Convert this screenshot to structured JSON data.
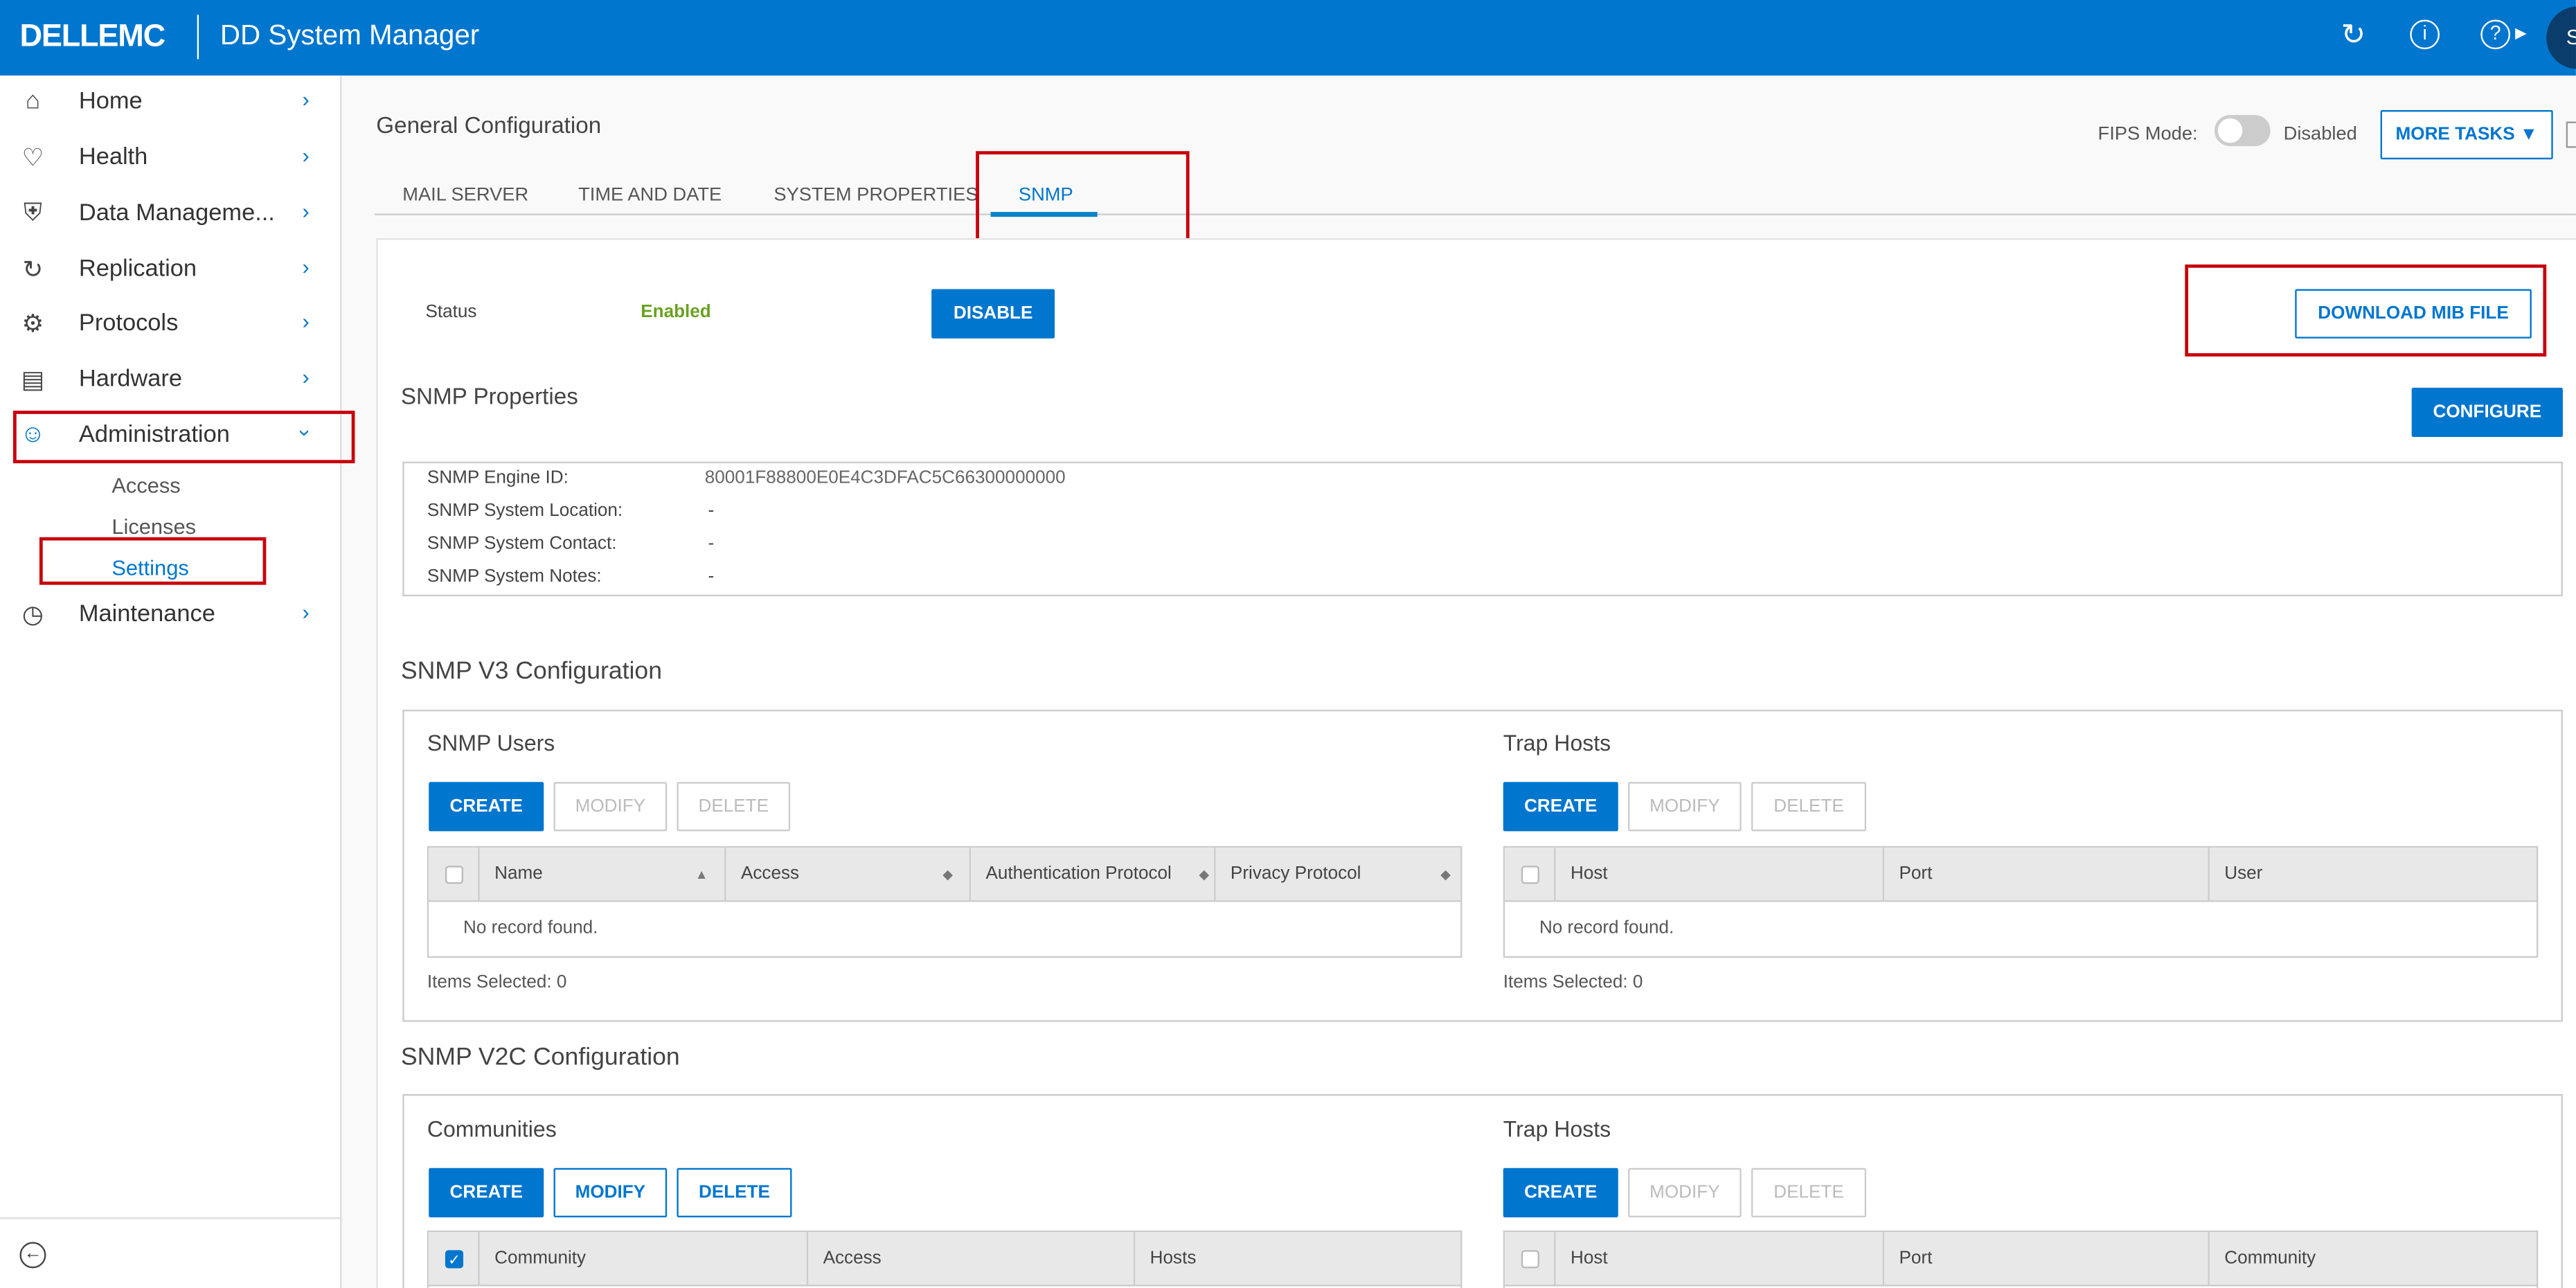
{
  "header": {
    "logo": "DELLEMC",
    "app_title": "DD System Manager",
    "avatar_initial": "S",
    "brand_color": "#0076CE",
    "icons": [
      "refresh-icon",
      "info-icon",
      "help-icon"
    ]
  },
  "sidebar": {
    "items": [
      {
        "label": "Home",
        "icon": "home-icon"
      },
      {
        "label": "Health",
        "icon": "heart-icon"
      },
      {
        "label": "Data Manageme...",
        "icon": "shield-icon"
      },
      {
        "label": "Replication",
        "icon": "sync-icon"
      },
      {
        "label": "Protocols",
        "icon": "protocols-icon"
      },
      {
        "label": "Hardware",
        "icon": "drive-icon"
      },
      {
        "label": "Administration",
        "icon": "admin-user-icon",
        "expanded": true
      },
      {
        "label": "Maintenance",
        "icon": "clock-icon"
      }
    ],
    "sub_items": [
      {
        "label": "Access"
      },
      {
        "label": "Licenses"
      },
      {
        "label": "Settings",
        "active": true
      }
    ]
  },
  "page": {
    "title": "General Configuration",
    "fips_label": "FIPS Mode:",
    "fips_state": "Disabled",
    "fips_on": false,
    "more_tasks": "MORE TASKS",
    "tabs": [
      {
        "label": "MAIL SERVER"
      },
      {
        "label": "TIME AND DATE"
      },
      {
        "label": "SYSTEM PROPERTIES"
      },
      {
        "label": "SNMP",
        "active": true
      }
    ]
  },
  "snmp": {
    "status_label": "Status",
    "status_value": "Enabled",
    "status_color": "#6AA121",
    "disable_btn": "DISABLE",
    "download_btn": "DOWNLOAD MIB FILE",
    "properties_title": "SNMP Properties",
    "configure_btn": "CONFIGURE",
    "properties": [
      {
        "label": "SNMP Engine ID:",
        "value": "80001F88800E0E4C3DFAC5C66300000000"
      },
      {
        "label": "SNMP System Location:",
        "value": "-"
      },
      {
        "label": "SNMP System Contact:",
        "value": "-"
      },
      {
        "label": "SNMP System Notes:",
        "value": "-"
      }
    ],
    "v3": {
      "title": "SNMP V3 Configuration",
      "users": {
        "title": "SNMP Users",
        "buttons": [
          "CREATE",
          "MODIFY",
          "DELETE"
        ],
        "columns": [
          "Name",
          "Access",
          "Authentication Protocol",
          "Privacy Protocol"
        ],
        "empty": "No record found.",
        "selected": "Items Selected: 0"
      },
      "trap_hosts": {
        "title": "Trap Hosts",
        "buttons": [
          "CREATE",
          "MODIFY",
          "DELETE"
        ],
        "columns": [
          "Host",
          "Port",
          "User"
        ],
        "empty": "No record found.",
        "selected": "Items Selected: 0"
      }
    },
    "v2c": {
      "title": "SNMP V2C Configuration",
      "communities": {
        "title": "Communities",
        "buttons": [
          "CREATE",
          "MODIFY",
          "DELETE"
        ],
        "columns": [
          "Community",
          "Access",
          "Hosts"
        ]
      },
      "trap_hosts": {
        "title": "Trap Hosts",
        "buttons": [
          "CREATE",
          "MODIFY",
          "DELETE"
        ],
        "columns": [
          "Host",
          "Port",
          "Community"
        ]
      }
    }
  }
}
